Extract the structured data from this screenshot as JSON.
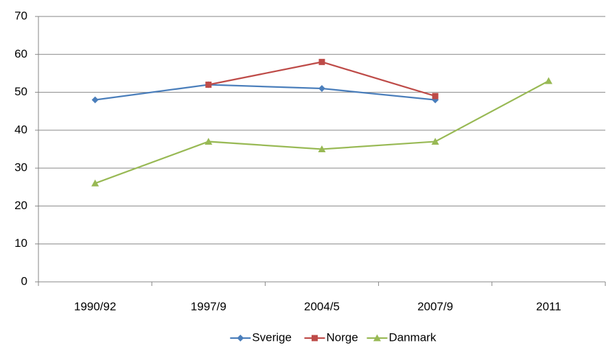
{
  "chart_data": {
    "type": "line",
    "categories": [
      "1990/92",
      "1997/9",
      "2004/5",
      "2007/9",
      "2011"
    ],
    "series": [
      {
        "name": "Sverige",
        "color": "#4a7ebb",
        "marker": "diamond",
        "values": [
          48,
          52,
          51,
          48,
          null
        ]
      },
      {
        "name": "Norge",
        "color": "#be4b48",
        "marker": "square",
        "values": [
          null,
          52,
          58,
          49,
          null
        ]
      },
      {
        "name": "Danmark",
        "color": "#98b954",
        "marker": "triangle",
        "values": [
          26,
          37,
          35,
          37,
          53
        ]
      }
    ],
    "ylim": [
      0,
      70
    ],
    "yticks": [
      0,
      10,
      20,
      30,
      40,
      50,
      60,
      70
    ],
    "grid": true,
    "legend": "bottom"
  }
}
